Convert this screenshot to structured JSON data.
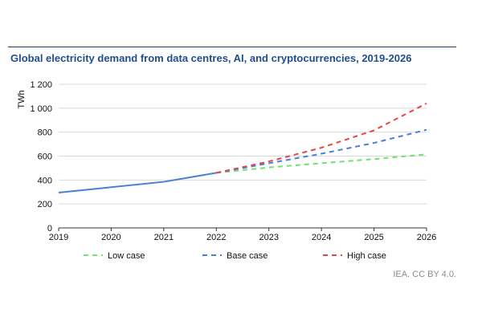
{
  "title": "Global electricity demand from data centres, AI, and cryptocurrencies, 2019-2026",
  "source": "IEA. CC BY 4.0.",
  "chart_data": {
    "type": "line",
    "title": "Global electricity demand from data centres, AI, and cryptocurrencies, 2019-2026",
    "xlabel": "",
    "ylabel": "TWh",
    "x": [
      2019,
      2020,
      2021,
      2022,
      2023,
      2024,
      2025,
      2026
    ],
    "xlim": [
      2019,
      2026
    ],
    "ylim": [
      0,
      1200
    ],
    "yticks": [
      0,
      200,
      400,
      600,
      800,
      1000,
      1200
    ],
    "ytick_labels": [
      "0",
      "200",
      "400",
      "600",
      "800",
      "1 000",
      "1 200"
    ],
    "xtick_labels": [
      "2019",
      "2020",
      "2021",
      "2022",
      "2023",
      "2024",
      "2025",
      "2026"
    ],
    "grid": "horizontal",
    "legend_position": "bottom",
    "historical": {
      "x": [
        2019,
        2020,
        2021,
        2022
      ],
      "values": [
        295,
        340,
        385,
        460
      ],
      "color": "#4a7fd4"
    },
    "series": [
      {
        "name": "Low case",
        "x": [
          2022,
          2023,
          2024,
          2025,
          2026
        ],
        "values": [
          460,
          505,
          540,
          575,
          615
        ],
        "color": "#6fe36f",
        "dash": true
      },
      {
        "name": "Base case",
        "x": [
          2022,
          2023,
          2024,
          2025,
          2026
        ],
        "values": [
          460,
          540,
          620,
          710,
          820
        ],
        "color": "#4a7fd4",
        "dash": true
      },
      {
        "name": "High case",
        "x": [
          2022,
          2023,
          2024,
          2025,
          2026
        ],
        "values": [
          460,
          555,
          670,
          815,
          1040
        ],
        "color": "#e64545",
        "dash": true
      }
    ]
  }
}
